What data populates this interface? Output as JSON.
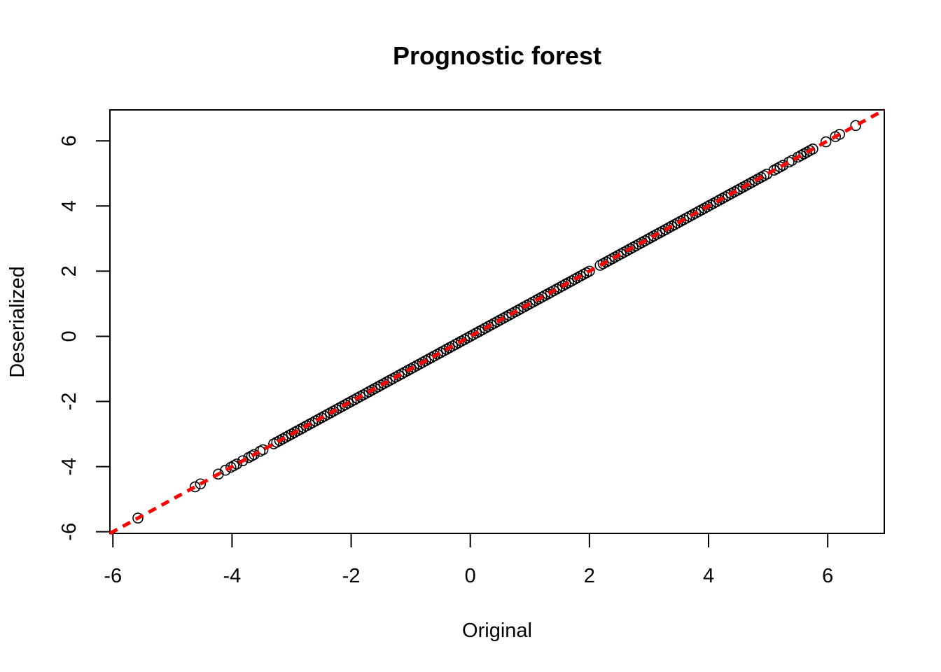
{
  "chart_data": {
    "type": "scatter",
    "title": "Prognostic forest",
    "xlabel": "Original",
    "ylabel": "Deserialized",
    "xlim": [
      -6.05,
      6.95
    ],
    "ylim": [
      -6.05,
      6.95
    ],
    "x_ticks": [
      "-6",
      "-4",
      "-2",
      "0",
      "2",
      "4",
      "6"
    ],
    "y_ticks": [
      "-6",
      "-4",
      "-2",
      "0",
      "2",
      "4",
      "6"
    ],
    "grid": false,
    "reference_line": {
      "slope": 1,
      "intercept": 0,
      "color": "#ff0000",
      "style": "dashed"
    },
    "point_color": "#000000",
    "points": [
      [
        -5.58,
        -5.58
      ],
      [
        -4.62,
        -4.62
      ],
      [
        -4.53,
        -4.53
      ],
      [
        -4.23,
        -4.23
      ],
      [
        -4.11,
        -4.11
      ],
      [
        -4.02,
        -4.02
      ],
      [
        -3.97,
        -3.97
      ],
      [
        -3.92,
        -3.92
      ],
      [
        -3.82,
        -3.82
      ],
      [
        -3.72,
        -3.72
      ],
      [
        -3.67,
        -3.67
      ],
      [
        -3.63,
        -3.63
      ],
      [
        -3.53,
        -3.53
      ],
      [
        -3.48,
        -3.48
      ],
      [
        -3.3,
        -3.3
      ],
      [
        -3.25,
        -3.25
      ],
      [
        -3.2,
        -3.2
      ],
      [
        -3.15,
        -3.15
      ],
      [
        -3.1,
        -3.1
      ],
      [
        -3.05,
        -3.05
      ],
      [
        -3.0,
        -3.0
      ],
      [
        -2.95,
        -2.95
      ],
      [
        -2.9,
        -2.9
      ],
      [
        -2.85,
        -2.85
      ],
      [
        -2.8,
        -2.8
      ],
      [
        -2.75,
        -2.75
      ],
      [
        -2.7,
        -2.7
      ],
      [
        -2.65,
        -2.65
      ],
      [
        -2.6,
        -2.6
      ],
      [
        -2.55,
        -2.55
      ],
      [
        -2.5,
        -2.5
      ],
      [
        -2.45,
        -2.45
      ],
      [
        -2.4,
        -2.4
      ],
      [
        -2.35,
        -2.35
      ],
      [
        -2.3,
        -2.3
      ],
      [
        -2.25,
        -2.25
      ],
      [
        -2.2,
        -2.2
      ],
      [
        -2.15,
        -2.15
      ],
      [
        -2.1,
        -2.1
      ],
      [
        -2.05,
        -2.05
      ],
      [
        -2.0,
        -2.0
      ],
      [
        -1.95,
        -1.95
      ],
      [
        -1.9,
        -1.9
      ],
      [
        -1.85,
        -1.85
      ],
      [
        -1.8,
        -1.8
      ],
      [
        -1.75,
        -1.75
      ],
      [
        -1.7,
        -1.7
      ],
      [
        -1.65,
        -1.65
      ],
      [
        -1.6,
        -1.6
      ],
      [
        -1.55,
        -1.55
      ],
      [
        -1.5,
        -1.5
      ],
      [
        -1.45,
        -1.45
      ],
      [
        -1.4,
        -1.4
      ],
      [
        -1.35,
        -1.35
      ],
      [
        -1.3,
        -1.3
      ],
      [
        -1.25,
        -1.25
      ],
      [
        -1.2,
        -1.2
      ],
      [
        -1.15,
        -1.15
      ],
      [
        -1.1,
        -1.1
      ],
      [
        -1.05,
        -1.05
      ],
      [
        -1.0,
        -1.0
      ],
      [
        -0.95,
        -0.95
      ],
      [
        -0.9,
        -0.9
      ],
      [
        -0.85,
        -0.85
      ],
      [
        -0.8,
        -0.8
      ],
      [
        -0.75,
        -0.75
      ],
      [
        -0.7,
        -0.7
      ],
      [
        -0.65,
        -0.65
      ],
      [
        -0.6,
        -0.6
      ],
      [
        -0.55,
        -0.55
      ],
      [
        -0.5,
        -0.5
      ],
      [
        -0.45,
        -0.45
      ],
      [
        -0.4,
        -0.4
      ],
      [
        -0.35,
        -0.35
      ],
      [
        -0.3,
        -0.3
      ],
      [
        -0.25,
        -0.25
      ],
      [
        -0.2,
        -0.2
      ],
      [
        -0.15,
        -0.15
      ],
      [
        -0.1,
        -0.1
      ],
      [
        -0.05,
        -0.05
      ],
      [
        0.0,
        0.0
      ],
      [
        0.05,
        0.05
      ],
      [
        0.1,
        0.1
      ],
      [
        0.15,
        0.15
      ],
      [
        0.2,
        0.2
      ],
      [
        0.25,
        0.25
      ],
      [
        0.3,
        0.3
      ],
      [
        0.35,
        0.35
      ],
      [
        0.4,
        0.4
      ],
      [
        0.45,
        0.45
      ],
      [
        0.5,
        0.5
      ],
      [
        0.55,
        0.55
      ],
      [
        0.6,
        0.6
      ],
      [
        0.65,
        0.65
      ],
      [
        0.7,
        0.7
      ],
      [
        0.75,
        0.75
      ],
      [
        0.8,
        0.8
      ],
      [
        0.85,
        0.85
      ],
      [
        0.9,
        0.9
      ],
      [
        0.95,
        0.95
      ],
      [
        1.0,
        1.0
      ],
      [
        1.05,
        1.05
      ],
      [
        1.1,
        1.1
      ],
      [
        1.15,
        1.15
      ],
      [
        1.2,
        1.2
      ],
      [
        1.25,
        1.25
      ],
      [
        1.3,
        1.3
      ],
      [
        1.35,
        1.35
      ],
      [
        1.4,
        1.4
      ],
      [
        1.45,
        1.45
      ],
      [
        1.5,
        1.5
      ],
      [
        1.55,
        1.55
      ],
      [
        1.6,
        1.6
      ],
      [
        1.65,
        1.65
      ],
      [
        1.7,
        1.7
      ],
      [
        1.75,
        1.75
      ],
      [
        1.8,
        1.8
      ],
      [
        1.85,
        1.85
      ],
      [
        1.9,
        1.9
      ],
      [
        1.95,
        1.95
      ],
      [
        2.0,
        2.0
      ],
      [
        2.18,
        2.18
      ],
      [
        2.23,
        2.23
      ],
      [
        2.28,
        2.28
      ],
      [
        2.33,
        2.33
      ],
      [
        2.38,
        2.38
      ],
      [
        2.43,
        2.43
      ],
      [
        2.48,
        2.48
      ],
      [
        2.53,
        2.53
      ],
      [
        2.58,
        2.58
      ],
      [
        2.63,
        2.63
      ],
      [
        2.68,
        2.68
      ],
      [
        2.73,
        2.73
      ],
      [
        2.78,
        2.78
      ],
      [
        2.83,
        2.83
      ],
      [
        2.88,
        2.88
      ],
      [
        2.93,
        2.93
      ],
      [
        2.98,
        2.98
      ],
      [
        3.03,
        3.03
      ],
      [
        3.08,
        3.08
      ],
      [
        3.13,
        3.13
      ],
      [
        3.18,
        3.18
      ],
      [
        3.23,
        3.23
      ],
      [
        3.28,
        3.28
      ],
      [
        3.33,
        3.33
      ],
      [
        3.38,
        3.38
      ],
      [
        3.43,
        3.43
      ],
      [
        3.48,
        3.48
      ],
      [
        3.53,
        3.53
      ],
      [
        3.58,
        3.58
      ],
      [
        3.63,
        3.63
      ],
      [
        3.68,
        3.68
      ],
      [
        3.73,
        3.73
      ],
      [
        3.78,
        3.78
      ],
      [
        3.83,
        3.83
      ],
      [
        3.88,
        3.88
      ],
      [
        3.93,
        3.93
      ],
      [
        3.98,
        3.98
      ],
      [
        4.03,
        4.03
      ],
      [
        4.08,
        4.08
      ],
      [
        4.13,
        4.13
      ],
      [
        4.18,
        4.18
      ],
      [
        4.23,
        4.23
      ],
      [
        4.28,
        4.28
      ],
      [
        4.33,
        4.33
      ],
      [
        4.38,
        4.38
      ],
      [
        4.43,
        4.43
      ],
      [
        4.48,
        4.48
      ],
      [
        4.53,
        4.53
      ],
      [
        4.58,
        4.58
      ],
      [
        4.63,
        4.63
      ],
      [
        4.68,
        4.68
      ],
      [
        4.73,
        4.73
      ],
      [
        4.78,
        4.78
      ],
      [
        4.83,
        4.83
      ],
      [
        4.88,
        4.88
      ],
      [
        4.93,
        4.93
      ],
      [
        4.98,
        4.98
      ],
      [
        5.1,
        5.1
      ],
      [
        5.15,
        5.15
      ],
      [
        5.2,
        5.2
      ],
      [
        5.25,
        5.25
      ],
      [
        5.35,
        5.35
      ],
      [
        5.4,
        5.4
      ],
      [
        5.5,
        5.5
      ],
      [
        5.55,
        5.55
      ],
      [
        5.6,
        5.6
      ],
      [
        5.65,
        5.65
      ],
      [
        5.7,
        5.7
      ],
      [
        5.75,
        5.75
      ],
      [
        5.97,
        5.97
      ],
      [
        6.13,
        6.13
      ],
      [
        6.2,
        6.2
      ],
      [
        6.47,
        6.47
      ]
    ]
  }
}
